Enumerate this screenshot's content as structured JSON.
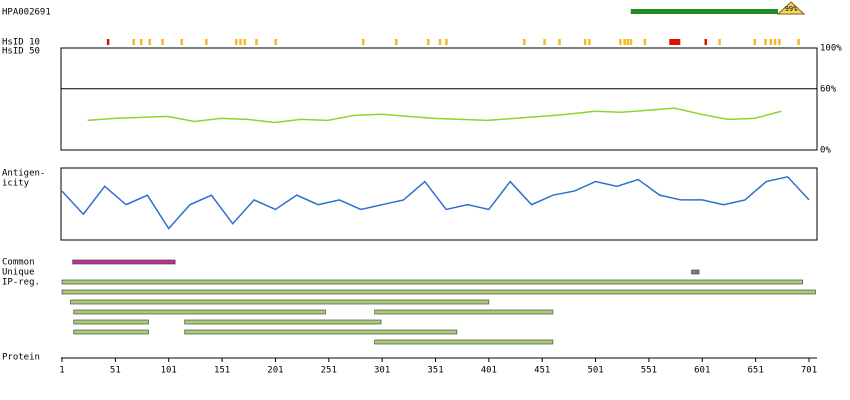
{
  "header": {
    "antigen": "HPA002691",
    "coverage_label": "99%",
    "antigen_start": 534,
    "antigen_end": 672,
    "bar_color": "#228b22",
    "flag_color": "#f0d860"
  },
  "hsid": {
    "labels": [
      "HsID 10",
      "HsID 50"
    ],
    "marks": [
      {
        "residue": 44,
        "color": "#dd1100"
      },
      {
        "residue": 68,
        "color": "#f5b820"
      },
      {
        "residue": 75,
        "color": "#f5b820"
      },
      {
        "residue": 83,
        "color": "#f5b820"
      },
      {
        "residue": 95,
        "color": "#f5b820"
      },
      {
        "residue": 113,
        "color": "#f5b820"
      },
      {
        "residue": 136,
        "color": "#f5b820"
      },
      {
        "residue": 164,
        "color": "#f5b820"
      },
      {
        "residue": 168,
        "color": "#f5b820"
      },
      {
        "residue": 172,
        "color": "#f5b820"
      },
      {
        "residue": 183,
        "color": "#f5b820"
      },
      {
        "residue": 201,
        "color": "#f5b820"
      },
      {
        "residue": 283,
        "color": "#f5b820"
      },
      {
        "residue": 314,
        "color": "#f5b820"
      },
      {
        "residue": 344,
        "color": "#f5b820"
      },
      {
        "residue": 355,
        "color": "#f5b820"
      },
      {
        "residue": 361,
        "color": "#f5b820"
      },
      {
        "residue": 434,
        "color": "#f5b820"
      },
      {
        "residue": 453,
        "color": "#f5b820"
      },
      {
        "residue": 467,
        "color": "#f5b820"
      },
      {
        "residue": 491,
        "color": "#f5b820"
      },
      {
        "residue": 495,
        "color": "#f5b820"
      },
      {
        "residue": 524,
        "color": "#f5b820"
      },
      {
        "residue": 528,
        "color": "#f5b820"
      },
      {
        "residue": 531,
        "color": "#f5b820"
      },
      {
        "residue": 534,
        "color": "#f5b820"
      },
      {
        "residue": 547,
        "color": "#f5b820"
      },
      {
        "residue": 571,
        "color": "#dd1100"
      },
      {
        "residue": 573,
        "color": "#dd1100"
      },
      {
        "residue": 575,
        "color": "#dd1100"
      },
      {
        "residue": 577,
        "color": "#dd1100"
      },
      {
        "residue": 579,
        "color": "#dd1100"
      },
      {
        "residue": 604,
        "color": "#dd1100"
      },
      {
        "residue": 617,
        "color": "#f5b820"
      },
      {
        "residue": 650,
        "color": "#f5b820"
      },
      {
        "residue": 660,
        "color": "#f5b820"
      },
      {
        "residue": 665,
        "color": "#f5b820"
      },
      {
        "residue": 669,
        "color": "#f5b820"
      },
      {
        "residue": 673,
        "color": "#f5b820"
      },
      {
        "residue": 691,
        "color": "#f5b820"
      }
    ]
  },
  "conservation": {
    "type": "line",
    "color": "#8fd42a",
    "yticks": [
      {
        "value": 100,
        "label": "100%"
      },
      {
        "value": 60,
        "label": "60%"
      },
      {
        "value": 0,
        "label": "0%"
      }
    ],
    "ylim": [
      0,
      100
    ],
    "x": [
      25,
      50,
      75,
      100,
      125,
      150,
      175,
      200,
      225,
      250,
      275,
      300,
      325,
      350,
      375,
      400,
      425,
      450,
      475,
      500,
      525,
      550,
      575,
      600,
      625,
      650,
      675
    ],
    "values": [
      29,
      31,
      32,
      33,
      28,
      31,
      30,
      27,
      30,
      29,
      34,
      35,
      33,
      31,
      30,
      29,
      31,
      33,
      35,
      38,
      37,
      39,
      41,
      35,
      30,
      31,
      38
    ]
  },
  "antigenicity": {
    "type": "line",
    "label_lines": [
      "Antigen-",
      "icity"
    ],
    "color": "#2e6fd0",
    "ylim": [
      0,
      100
    ],
    "x": [
      1,
      21,
      41,
      61,
      81,
      101,
      121,
      141,
      161,
      181,
      201,
      221,
      241,
      261,
      281,
      301,
      321,
      341,
      361,
      381,
      401,
      421,
      441,
      461,
      481,
      501,
      521,
      541,
      561,
      581,
      601,
      621,
      641,
      661,
      681,
      701
    ],
    "values": [
      69,
      35,
      76,
      49,
      63,
      14,
      49,
      63,
      21,
      56,
      42,
      63,
      49,
      56,
      42,
      49,
      56,
      83,
      42,
      49,
      42,
      83,
      49,
      63,
      69,
      83,
      76,
      86,
      63,
      56,
      56,
      49,
      56,
      83,
      90,
      56
    ]
  },
  "tracks": [
    {
      "label": "Common",
      "color": "#c0309a",
      "ranges": [
        [
          11,
          107
        ]
      ]
    },
    {
      "label": "Unique",
      "color": "#808080",
      "ranges": [
        [
          591,
          598
        ]
      ]
    },
    {
      "label": "IP-reg.",
      "color": "#a8cc7a",
      "rows": [
        [
          [
            1,
            695
          ]
        ],
        [
          [
            1,
            707
          ]
        ],
        [
          [
            9,
            401
          ]
        ],
        [
          [
            12,
            248
          ],
          [
            294,
            461
          ]
        ],
        [
          [
            12,
            82
          ],
          [
            116,
            300
          ]
        ],
        [
          [
            12,
            82
          ],
          [
            116,
            371
          ]
        ],
        [
          [
            294,
            461
          ]
        ]
      ]
    }
  ],
  "protein_axis": {
    "label": "Protein",
    "xlim": [
      1,
      701
    ],
    "xticks": [
      1,
      51,
      101,
      151,
      201,
      251,
      301,
      351,
      401,
      451,
      501,
      551,
      601,
      651,
      701
    ]
  }
}
